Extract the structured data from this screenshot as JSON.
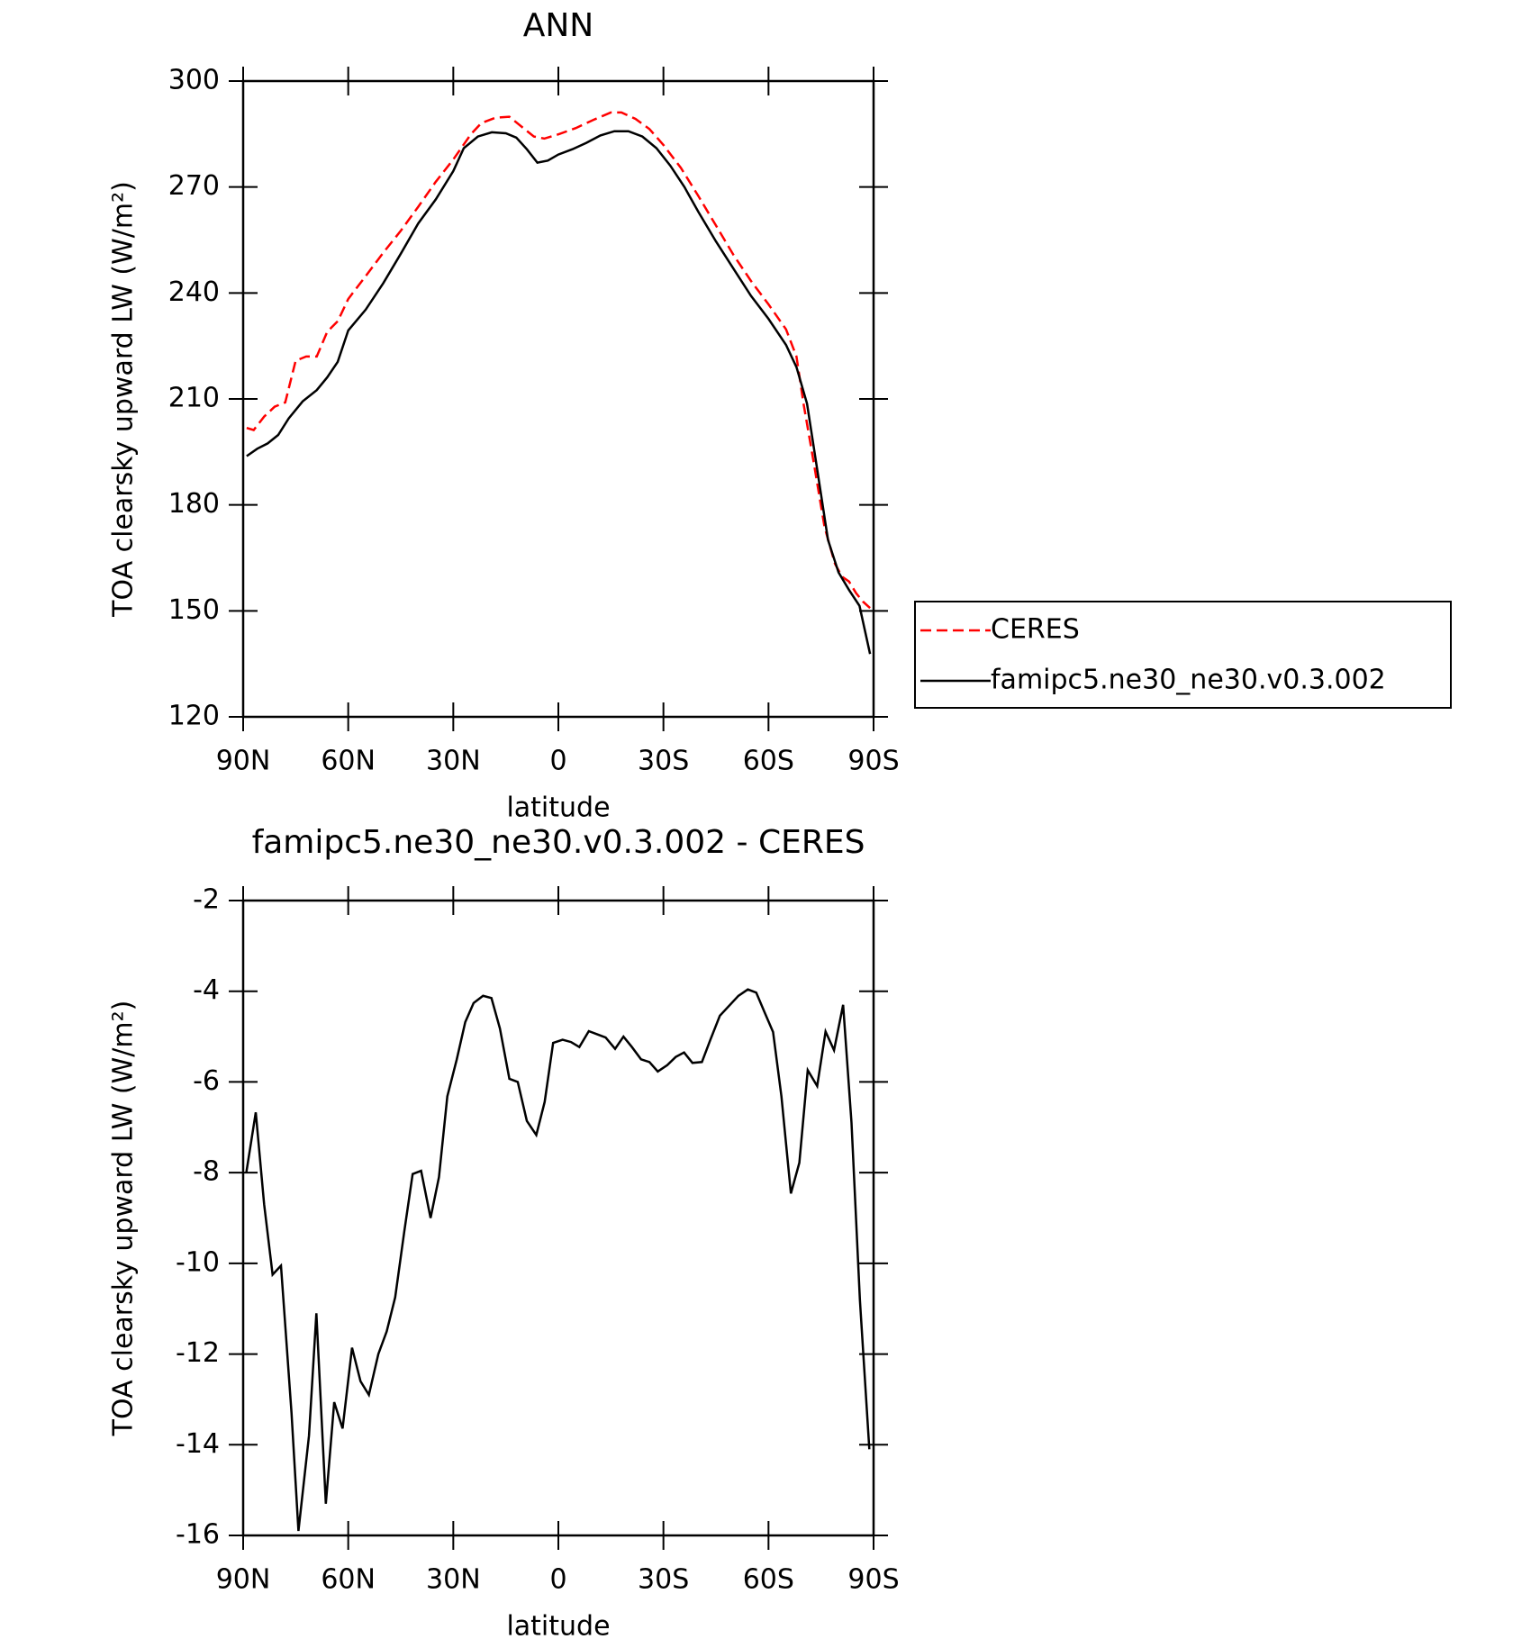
{
  "chart_data": [
    {
      "type": "line",
      "title": "ANN",
      "xlabel": "latitude",
      "ylabel": "TOA clearsky upward LW (W/m²)",
      "xlim": [
        90,
        -90
      ],
      "xticks": [
        {
          "value": 90,
          "label": "90N"
        },
        {
          "value": 60,
          "label": "60N"
        },
        {
          "value": 30,
          "label": "30N"
        },
        0,
        {
          "value": -30,
          "label": "30S"
        },
        {
          "value": -60,
          "label": "60S"
        },
        {
          "value": -90,
          "label": "90S"
        }
      ],
      "ylim": [
        120,
        300
      ],
      "yticks": [
        120,
        150,
        180,
        210,
        240,
        270,
        300
      ],
      "legend": "right",
      "series": [
        {
          "name": "CERES",
          "color": "#ff0000",
          "dash": true,
          "x": [
            89,
            87,
            84,
            81,
            78,
            75,
            72,
            69,
            66,
            63,
            60,
            55,
            50,
            45,
            40,
            35,
            30,
            25,
            22,
            18,
            14,
            10,
            7,
            4,
            0,
            -5,
            -10,
            -15,
            -18,
            -22,
            -26,
            -30,
            -35,
            -40,
            -45,
            -50,
            -55,
            -60,
            -65,
            -68,
            -70,
            -73,
            -76,
            -79,
            -81,
            -83,
            -85,
            -87,
            -89
          ],
          "values": [
            201.8,
            201.2,
            205,
            207.8,
            209,
            220.8,
            222,
            222,
            229,
            232,
            238.3,
            244.8,
            251.4,
            257.6,
            264.4,
            271.5,
            277.8,
            284.9,
            288.1,
            289.6,
            289.9,
            286.7,
            284.3,
            283.7,
            284.9,
            286.7,
            289,
            291.1,
            291.1,
            289.3,
            286.4,
            281.9,
            275.4,
            267.4,
            259.1,
            250.8,
            243.4,
            236.8,
            229.7,
            222,
            208.7,
            191.5,
            173.7,
            163.3,
            159.7,
            158.3,
            155,
            152.6,
            150.8
          ]
        },
        {
          "name": "famipc5.ne30_ne30.v0.3.002",
          "color": "#000000",
          "dash": false,
          "x": [
            89,
            86,
            83,
            80,
            77,
            73,
            69,
            66,
            63,
            60,
            55,
            50,
            45,
            40,
            35,
            30,
            27,
            23,
            19,
            15,
            12,
            9,
            6,
            3,
            0,
            -4,
            -8,
            -12,
            -16,
            -20,
            -24,
            -28,
            -32,
            -36,
            -40,
            -45,
            -50,
            -55,
            -60,
            -65,
            -68,
            -71,
            -74,
            -77,
            -80,
            -83,
            -86,
            -89
          ],
          "values": [
            193.8,
            195.9,
            197.4,
            199.8,
            204.5,
            209.3,
            212.5,
            216.1,
            220.5,
            229.4,
            235.3,
            242.8,
            251.1,
            259.7,
            266.5,
            274.5,
            281,
            284.3,
            285.5,
            285.2,
            284,
            280.7,
            276.9,
            277.5,
            279.2,
            280.7,
            282.5,
            284.6,
            285.8,
            285.8,
            284.3,
            281,
            276,
            270,
            262.9,
            254.6,
            246.9,
            239.2,
            232.7,
            225.3,
            219,
            208.7,
            189.4,
            170.1,
            160.9,
            155.9,
            151.4,
            137.8
          ]
        }
      ]
    },
    {
      "type": "line",
      "title": "famipc5.ne30_ne30.v0.3.002 - CERES",
      "xlabel": "latitude",
      "ylabel": "TOA clearsky upward LW (W/m²)",
      "xlim": [
        90,
        -90
      ],
      "xticks": [
        {
          "value": 90,
          "label": "90N"
        },
        {
          "value": 60,
          "label": "60N"
        },
        {
          "value": 30,
          "label": "30N"
        },
        0,
        {
          "value": -30,
          "label": "30S"
        },
        {
          "value": -60,
          "label": "60S"
        },
        {
          "value": -90,
          "label": "90S"
        }
      ],
      "ylim": [
        -16,
        -2
      ],
      "yticks": [
        -16,
        -14,
        -12,
        -10,
        -8,
        -6,
        -4,
        -2
      ],
      "series": [
        {
          "color": "#000000",
          "dash": false,
          "x": [
            89.1,
            86.4,
            84,
            81.6,
            79.2,
            76.2,
            74.2,
            71.2,
            69.1,
            66.4,
            64,
            61.6,
            58.9,
            56.5,
            54.1,
            51.4,
            49,
            46.6,
            44,
            41.6,
            39.2,
            36.5,
            34.1,
            31.7,
            29,
            26.6,
            24.2,
            21.5,
            19.1,
            16.7,
            14,
            11.6,
            9,
            6.3,
            3.9,
            1.5,
            -1.2,
            -3.6,
            -6,
            -8.7,
            -11.1,
            -13.5,
            -16.2,
            -18.6,
            -21,
            -23.6,
            -26,
            -28.4,
            -31.1,
            -33.5,
            -35.9,
            -38.3,
            -41,
            -43.4,
            -46.1,
            -51.4,
            -54.1,
            -56.5,
            -58.9,
            -61.3,
            -63.7,
            -66.4,
            -68.8,
            -71.2,
            -73.9,
            -76.3,
            -78.7,
            -81.3,
            -83.7,
            -86.1,
            -88.8
          ],
          "values": [
            -8,
            -6.67,
            -8.7,
            -10.25,
            -10.05,
            -13.3,
            -15.9,
            -13.8,
            -11.1,
            -15.3,
            -13.06,
            -13.64,
            -11.86,
            -12.6,
            -12.9,
            -12,
            -11.5,
            -10.75,
            -9.3,
            -8.03,
            -7.96,
            -9,
            -8.1,
            -6.32,
            -5.5,
            -4.68,
            -4.26,
            -4.1,
            -4.15,
            -4.82,
            -5.93,
            -6,
            -6.86,
            -7.17,
            -6.44,
            -5.14,
            -5.07,
            -5.12,
            -5.23,
            -4.88,
            -4.95,
            -5.02,
            -5.27,
            -5,
            -5.23,
            -5.5,
            -5.56,
            -5.77,
            -5.63,
            -5.45,
            -5.35,
            -5.58,
            -5.56,
            -5.07,
            -4.54,
            -4.1,
            -3.96,
            -4.03,
            -4.47,
            -4.9,
            -6.32,
            -8.46,
            -7.78,
            -5.74,
            -6.09,
            -4.89,
            -5.3,
            -4.3,
            -6.9,
            -10.8,
            -14.1
          ]
        }
      ]
    }
  ]
}
